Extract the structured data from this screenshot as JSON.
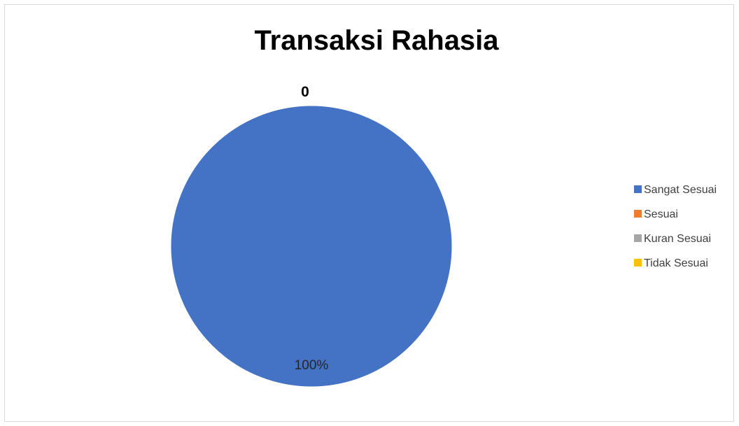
{
  "chart_data": {
    "type": "pie",
    "title": "Transaksi Rahasia",
    "top_label": "0",
    "categories": [
      "Sangat Sesuai",
      "Sesuai",
      "Kuran Sesuai",
      "Tidak Sesuai"
    ],
    "values": [
      100,
      0,
      0,
      0
    ],
    "data_labels": [
      "100%"
    ],
    "colors": [
      "#4472c4",
      "#ed7d31",
      "#a5a5a5",
      "#ffc000"
    ],
    "legend_position": "right"
  }
}
